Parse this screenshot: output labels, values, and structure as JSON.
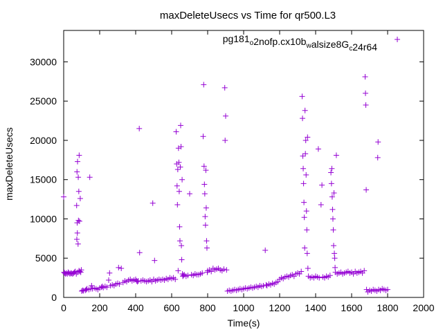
{
  "chart_data": {
    "type": "scatter",
    "title": "maxDeleteUsecs vs Time for qr500.L3",
    "xlabel": "Time(s)",
    "ylabel": "maxDeleteUsecs",
    "xlim": [
      0,
      2000
    ],
    "ylim": [
      0,
      34000
    ],
    "x_ticks": [
      0,
      200,
      400,
      600,
      800,
      1000,
      1200,
      1400,
      1600,
      1800,
      2000
    ],
    "y_ticks": [
      0,
      5000,
      10000,
      15000,
      20000,
      25000,
      30000
    ],
    "grid": false,
    "legend_position": "top-right",
    "series": [
      {
        "name": "pg181_o2nofp.cx10b_walsize8G_c24r64",
        "color": "#9400d3",
        "marker": "plus",
        "points": [
          [
            0,
            12800
          ],
          [
            2,
            3200
          ],
          [
            5,
            3100
          ],
          [
            10,
            3000
          ],
          [
            15,
            3100
          ],
          [
            20,
            3000
          ],
          [
            25,
            3200
          ],
          [
            30,
            3100
          ],
          [
            35,
            3000
          ],
          [
            40,
            3100
          ],
          [
            45,
            3050
          ],
          [
            50,
            3000
          ],
          [
            55,
            3100
          ],
          [
            60,
            3200
          ],
          [
            65,
            3300
          ],
          [
            70,
            3000
          ],
          [
            72,
            11700
          ],
          [
            73,
            7400
          ],
          [
            74,
            16000
          ],
          [
            75,
            9500
          ],
          [
            76,
            8200
          ],
          [
            77,
            17300
          ],
          [
            78,
            3200
          ],
          [
            80,
            6800
          ],
          [
            81,
            15300
          ],
          [
            82,
            9800
          ],
          [
            84,
            13500
          ],
          [
            85,
            3400
          ],
          [
            86,
            18100
          ],
          [
            88,
            9700
          ],
          [
            90,
            3300
          ],
          [
            92,
            12600
          ],
          [
            95,
            3200
          ],
          [
            98,
            3500
          ],
          [
            100,
            800
          ],
          [
            105,
            900
          ],
          [
            110,
            850
          ],
          [
            120,
            900
          ],
          [
            125,
            1000
          ],
          [
            130,
            1100
          ],
          [
            140,
            1000
          ],
          [
            145,
            15300
          ],
          [
            150,
            1100
          ],
          [
            155,
            1500
          ],
          [
            160,
            1100
          ],
          [
            170,
            1200
          ],
          [
            180,
            1100
          ],
          [
            190,
            1000
          ],
          [
            200,
            1200
          ],
          [
            210,
            1300
          ],
          [
            215,
            1400
          ],
          [
            220,
            1250
          ],
          [
            230,
            1400
          ],
          [
            240,
            1300
          ],
          [
            250,
            2200
          ],
          [
            255,
            3100
          ],
          [
            260,
            1500
          ],
          [
            270,
            1600
          ],
          [
            280,
            1500
          ],
          [
            290,
            1700
          ],
          [
            300,
            1800
          ],
          [
            305,
            3800
          ],
          [
            310,
            1700
          ],
          [
            320,
            3700
          ],
          [
            330,
            1900
          ],
          [
            340,
            2100
          ],
          [
            350,
            2000
          ],
          [
            360,
            2200
          ],
          [
            370,
            2300
          ],
          [
            380,
            2100
          ],
          [
            390,
            2200
          ],
          [
            400,
            2300
          ],
          [
            405,
            2100
          ],
          [
            410,
            2000
          ],
          [
            415,
            2100
          ],
          [
            420,
            21500
          ],
          [
            422,
            5700
          ],
          [
            430,
            2100
          ],
          [
            440,
            2200
          ],
          [
            450,
            2100
          ],
          [
            460,
            2000
          ],
          [
            470,
            2100
          ],
          [
            480,
            2200
          ],
          [
            490,
            2000
          ],
          [
            495,
            12000
          ],
          [
            500,
            2300
          ],
          [
            505,
            4700
          ],
          [
            510,
            2100
          ],
          [
            520,
            2200
          ],
          [
            530,
            2300
          ],
          [
            540,
            2200
          ],
          [
            550,
            2300
          ],
          [
            560,
            2200
          ],
          [
            570,
            2400
          ],
          [
            580,
            2300
          ],
          [
            590,
            2500
          ],
          [
            600,
            2400
          ],
          [
            610,
            2500
          ],
          [
            620,
            2300
          ],
          [
            625,
            21100
          ],
          [
            628,
            17000
          ],
          [
            630,
            14200
          ],
          [
            632,
            11800
          ],
          [
            634,
            16300
          ],
          [
            636,
            3400
          ],
          [
            638,
            19000
          ],
          [
            640,
            17200
          ],
          [
            642,
            13500
          ],
          [
            644,
            9000
          ],
          [
            646,
            7200
          ],
          [
            648,
            16600
          ],
          [
            650,
            21900
          ],
          [
            652,
            19200
          ],
          [
            654,
            6600
          ],
          [
            656,
            4800
          ],
          [
            658,
            15000
          ],
          [
            660,
            3000
          ],
          [
            662,
            2700
          ],
          [
            665,
            2800
          ],
          [
            670,
            2900
          ],
          [
            680,
            2700
          ],
          [
            690,
            2800
          ],
          [
            700,
            13200
          ],
          [
            710,
            2900
          ],
          [
            720,
            2800
          ],
          [
            730,
            3000
          ],
          [
            740,
            2900
          ],
          [
            750,
            2900
          ],
          [
            760,
            3000
          ],
          [
            770,
            3100
          ],
          [
            775,
            20500
          ],
          [
            778,
            27100
          ],
          [
            780,
            16700
          ],
          [
            782,
            14400
          ],
          [
            784,
            13200
          ],
          [
            786,
            10300
          ],
          [
            788,
            9200
          ],
          [
            790,
            16200
          ],
          [
            792,
            11400
          ],
          [
            794,
            7200
          ],
          [
            796,
            6300
          ],
          [
            798,
            3200
          ],
          [
            800,
            3400
          ],
          [
            810,
            3500
          ],
          [
            820,
            3300
          ],
          [
            830,
            3700
          ],
          [
            840,
            3500
          ],
          [
            850,
            3600
          ],
          [
            860,
            3700
          ],
          [
            870,
            3500
          ],
          [
            880,
            3400
          ],
          [
            890,
            3600
          ],
          [
            895,
            26700
          ],
          [
            897,
            20000
          ],
          [
            900,
            23100
          ],
          [
            905,
            3500
          ],
          [
            910,
            800
          ],
          [
            920,
            900
          ],
          [
            930,
            800
          ],
          [
            940,
            900
          ],
          [
            950,
            1000
          ],
          [
            960,
            900
          ],
          [
            970,
            1000
          ],
          [
            980,
            1100
          ],
          [
            990,
            1000
          ],
          [
            1000,
            1100
          ],
          [
            1010,
            1200
          ],
          [
            1020,
            1100
          ],
          [
            1030,
            1200
          ],
          [
            1040,
            1300
          ],
          [
            1050,
            1200
          ],
          [
            1060,
            1300
          ],
          [
            1070,
            1400
          ],
          [
            1080,
            1300
          ],
          [
            1090,
            1500
          ],
          [
            1100,
            1400
          ],
          [
            1110,
            1500
          ],
          [
            1120,
            6000
          ],
          [
            1125,
            1600
          ],
          [
            1130,
            1500
          ],
          [
            1140,
            1700
          ],
          [
            1150,
            1600
          ],
          [
            1160,
            1800
          ],
          [
            1170,
            1700
          ],
          [
            1180,
            1900
          ],
          [
            1190,
            2000
          ],
          [
            1200,
            2300
          ],
          [
            1210,
            2500
          ],
          [
            1220,
            2400
          ],
          [
            1230,
            2600
          ],
          [
            1240,
            2700
          ],
          [
            1250,
            2600
          ],
          [
            1260,
            2800
          ],
          [
            1270,
            2900
          ],
          [
            1280,
            2700
          ],
          [
            1290,
            3000
          ],
          [
            1300,
            3100
          ],
          [
            1310,
            3000
          ],
          [
            1320,
            3300
          ],
          [
            1325,
            25600
          ],
          [
            1327,
            22800
          ],
          [
            1329,
            18000
          ],
          [
            1331,
            16400
          ],
          [
            1333,
            14500
          ],
          [
            1335,
            12100
          ],
          [
            1337,
            10200
          ],
          [
            1339,
            6300
          ],
          [
            1341,
            23800
          ],
          [
            1343,
            18300
          ],
          [
            1345,
            20000
          ],
          [
            1347,
            15600
          ],
          [
            1349,
            11000
          ],
          [
            1351,
            8600
          ],
          [
            1353,
            5600
          ],
          [
            1355,
            20400
          ],
          [
            1357,
            3700
          ],
          [
            1360,
            2700
          ],
          [
            1370,
            2500
          ],
          [
            1380,
            2600
          ],
          [
            1390,
            2500
          ],
          [
            1400,
            2700
          ],
          [
            1410,
            2600
          ],
          [
            1415,
            18900
          ],
          [
            1420,
            2500
          ],
          [
            1430,
            11800
          ],
          [
            1435,
            14300
          ],
          [
            1440,
            2600
          ],
          [
            1450,
            2500
          ],
          [
            1460,
            2700
          ],
          [
            1470,
            2600
          ],
          [
            1480,
            2800
          ],
          [
            1485,
            15900
          ],
          [
            1488,
            14500
          ],
          [
            1490,
            16400
          ],
          [
            1492,
            12800
          ],
          [
            1494,
            11200
          ],
          [
            1496,
            10000
          ],
          [
            1498,
            8600
          ],
          [
            1500,
            6600
          ],
          [
            1502,
            13300
          ],
          [
            1504,
            5600
          ],
          [
            1506,
            5000
          ],
          [
            1508,
            3800
          ],
          [
            1510,
            3200
          ],
          [
            1515,
            18100
          ],
          [
            1520,
            3000
          ],
          [
            1530,
            3100
          ],
          [
            1540,
            3200
          ],
          [
            1550,
            3000
          ],
          [
            1560,
            3100
          ],
          [
            1570,
            3200
          ],
          [
            1580,
            3300
          ],
          [
            1590,
            3100
          ],
          [
            1600,
            3200
          ],
          [
            1610,
            3000
          ],
          [
            1620,
            3300
          ],
          [
            1630,
            3100
          ],
          [
            1640,
            3200
          ],
          [
            1650,
            3300
          ],
          [
            1660,
            3100
          ],
          [
            1670,
            3400
          ],
          [
            1675,
            28100
          ],
          [
            1677,
            26000
          ],
          [
            1679,
            24500
          ],
          [
            1681,
            13700
          ],
          [
            1683,
            1000
          ],
          [
            1690,
            700
          ],
          [
            1700,
            900
          ],
          [
            1710,
            800
          ],
          [
            1720,
            1000
          ],
          [
            1730,
            900
          ],
          [
            1740,
            800
          ],
          [
            1745,
            17800
          ],
          [
            1747,
            19800
          ],
          [
            1750,
            1000
          ],
          [
            1760,
            900
          ],
          [
            1770,
            1100
          ],
          [
            1780,
            1000
          ],
          [
            1790,
            900
          ],
          [
            1800,
            1000
          ]
        ]
      }
    ]
  }
}
